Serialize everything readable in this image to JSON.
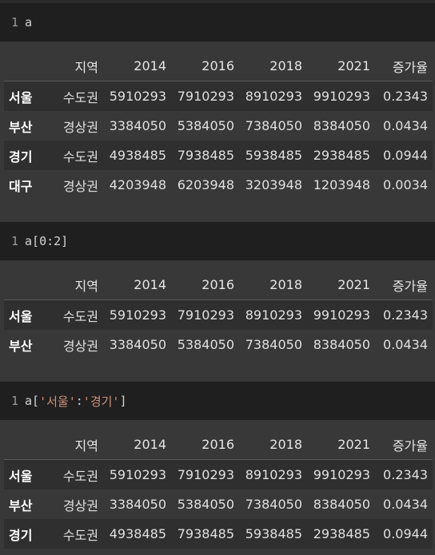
{
  "columns": [
    "지역",
    "2014",
    "2016",
    "2018",
    "2021",
    "증가율"
  ],
  "cells": [
    {
      "line_no": "1",
      "code": "a",
      "rows": [
        {
          "idx": "서울",
          "region": "수도권",
          "v2014": "5910293",
          "v2016": "7910293",
          "v2018": "8910293",
          "v2021": "9910293",
          "rate": "0.2343"
        },
        {
          "idx": "부산",
          "region": "경상권",
          "v2014": "3384050",
          "v2016": "5384050",
          "v2018": "7384050",
          "v2021": "8384050",
          "rate": "0.0434"
        },
        {
          "idx": "경기",
          "region": "수도권",
          "v2014": "4938485",
          "v2016": "7938485",
          "v2018": "5938485",
          "v2021": "2938485",
          "rate": "0.0944"
        },
        {
          "idx": "대구",
          "region": "경상권",
          "v2014": "4203948",
          "v2016": "6203948",
          "v2018": "3203948",
          "v2021": "1203948",
          "rate": "0.0034"
        }
      ]
    },
    {
      "line_no": "1",
      "code": "a[0:2]",
      "rows": [
        {
          "idx": "서울",
          "region": "수도권",
          "v2014": "5910293",
          "v2016": "7910293",
          "v2018": "8910293",
          "v2021": "9910293",
          "rate": "0.2343"
        },
        {
          "idx": "부산",
          "region": "경상권",
          "v2014": "3384050",
          "v2016": "5384050",
          "v2018": "7384050",
          "v2021": "8384050",
          "rate": "0.0434"
        }
      ]
    },
    {
      "line_no": "1",
      "code_prefix": "a[",
      "code_str1": "'서울'",
      "code_colon": ":",
      "code_str2": "'경기'",
      "code_suffix": "]",
      "rows": [
        {
          "idx": "서울",
          "region": "수도권",
          "v2014": "5910293",
          "v2016": "7910293",
          "v2018": "8910293",
          "v2021": "9910293",
          "rate": "0.2343"
        },
        {
          "idx": "부산",
          "region": "경상권",
          "v2014": "3384050",
          "v2016": "5384050",
          "v2018": "7384050",
          "v2021": "8384050",
          "rate": "0.0434"
        },
        {
          "idx": "경기",
          "region": "수도권",
          "v2014": "4938485",
          "v2016": "7938485",
          "v2018": "5938485",
          "v2021": "2938485",
          "rate": "0.0944"
        }
      ]
    }
  ]
}
